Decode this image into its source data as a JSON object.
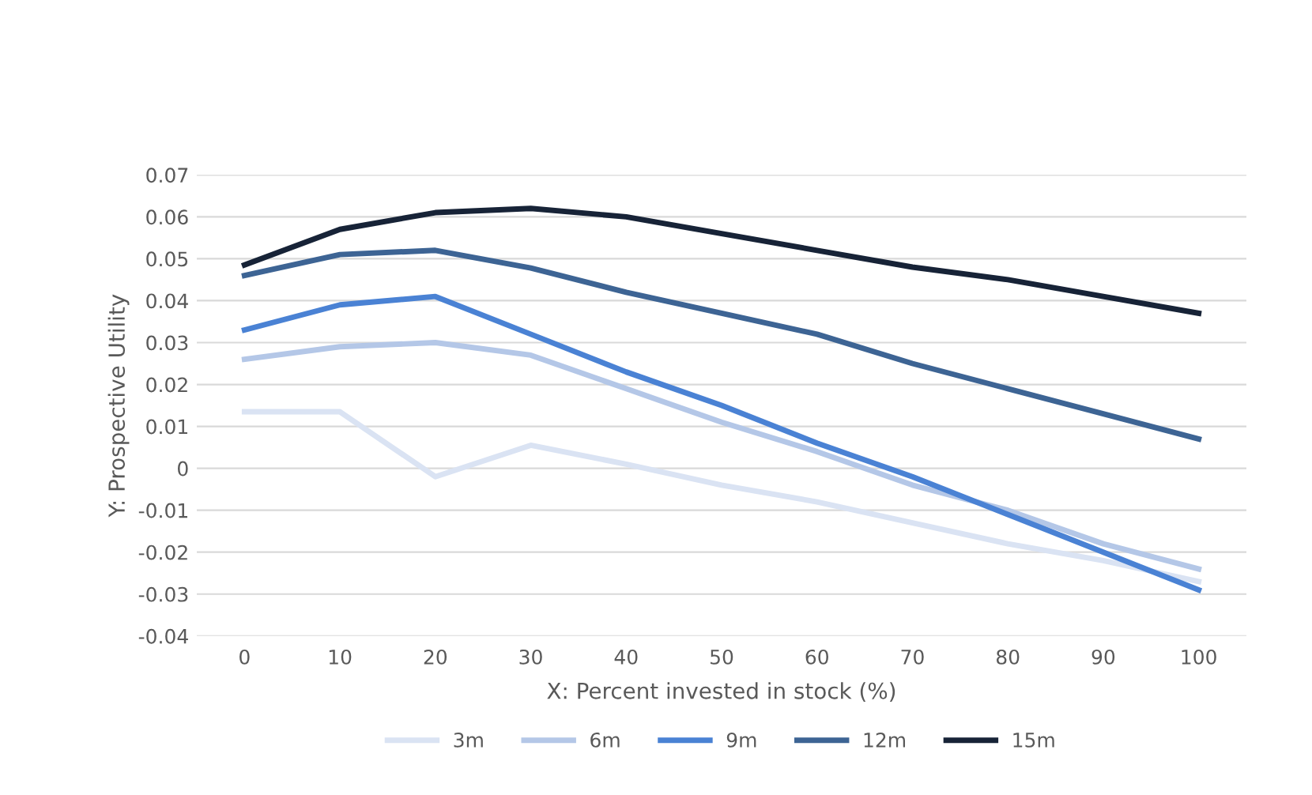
{
  "chart_data": {
    "type": "line",
    "xlabel": "X: Percent invested in stock (%)",
    "ylabel": "Y: Prospective Utility",
    "categories": [
      "0",
      "10",
      "20",
      "30",
      "40",
      "50",
      "60",
      "70",
      "80",
      "90",
      "100"
    ],
    "series": [
      {
        "name": "3m",
        "color": "#dae3f3",
        "values": [
          0.0135,
          0.0135,
          -0.002,
          0.0055,
          0.001,
          -0.004,
          -0.008,
          -0.013,
          -0.018,
          -0.022,
          -0.027
        ]
      },
      {
        "name": "6m",
        "color": "#b4c7e7",
        "values": [
          0.026,
          0.029,
          0.03,
          0.027,
          0.019,
          0.011,
          0.004,
          -0.004,
          -0.01,
          -0.018,
          -0.024
        ]
      },
      {
        "name": "9m",
        "color": "#4a82d4",
        "values": [
          0.033,
          0.039,
          0.041,
          0.032,
          0.023,
          0.015,
          0.006,
          -0.002,
          -0.011,
          -0.02,
          -0.029
        ]
      },
      {
        "name": "12m",
        "color": "#3d6494",
        "values": [
          0.046,
          0.051,
          0.052,
          0.0478,
          0.042,
          0.037,
          0.032,
          0.025,
          0.019,
          0.013,
          0.007
        ]
      },
      {
        "name": "15m",
        "color": "#172337",
        "values": [
          0.0485,
          0.057,
          0.061,
          0.062,
          0.06,
          0.056,
          0.052,
          0.048,
          0.045,
          0.041,
          0.037
        ]
      }
    ],
    "ylim": [
      -0.04,
      0.07
    ],
    "yticks": [
      -0.04,
      -0.03,
      -0.02,
      -0.01,
      0,
      0.01,
      0.02,
      0.03,
      0.04,
      0.05,
      0.06,
      0.07
    ],
    "grid": "y",
    "legend": "bottom",
    "marker": "none",
    "line_style": "solid"
  }
}
